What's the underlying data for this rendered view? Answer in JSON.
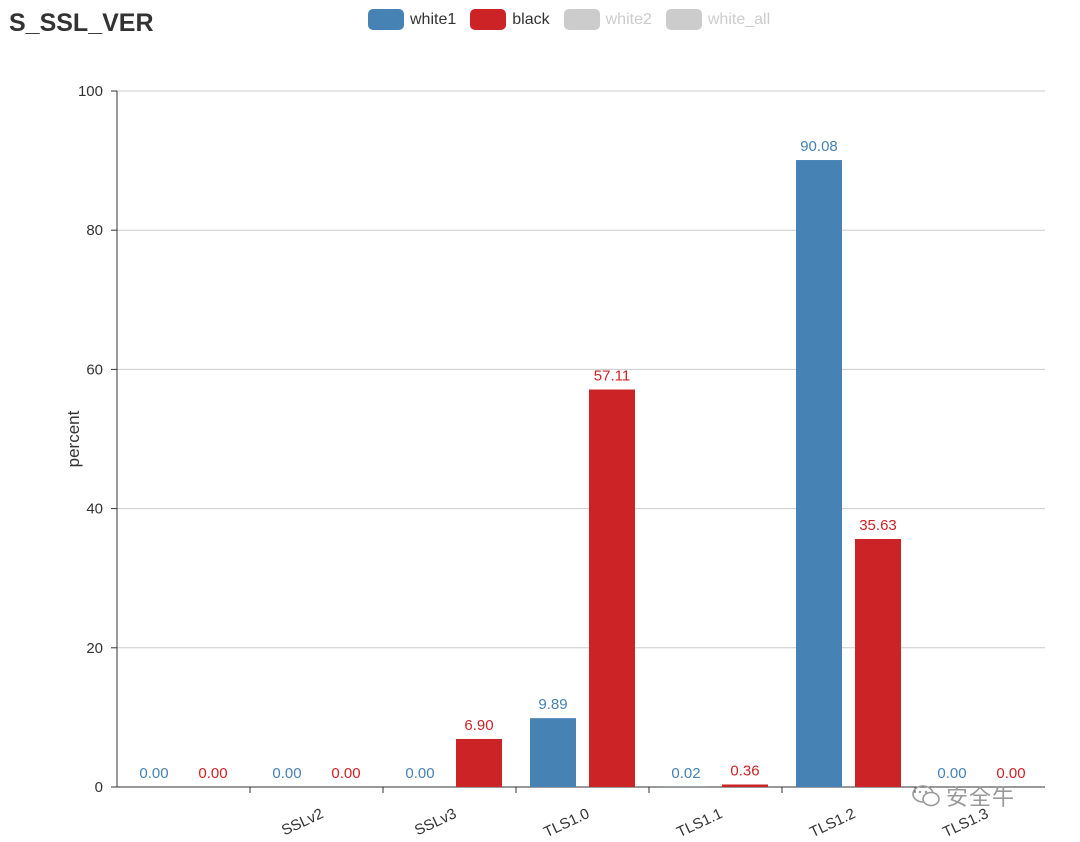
{
  "chart_data": {
    "type": "bar",
    "title": "S_SSL_VER",
    "xlabel": "",
    "ylabel": "percent",
    "ylim": [
      0,
      100
    ],
    "yticks": [
      0,
      20,
      40,
      60,
      80,
      100
    ],
    "grid": true,
    "legend_position": "top-center",
    "categories": [
      "",
      "SSLv2",
      "SSLv3",
      "TLS1.0",
      "TLS1.1",
      "TLS1.2",
      "TLS1.3"
    ],
    "series": [
      {
        "name": "white1",
        "color": "#4682b4",
        "active": true,
        "values": [
          0.0,
          0.0,
          0.0,
          9.89,
          0.02,
          90.08,
          0.0
        ],
        "labels": [
          "0.00",
          "0.00",
          "0.00",
          "9.89",
          "0.02",
          "90.08",
          "0.00"
        ]
      },
      {
        "name": "black",
        "color": "#cc2327",
        "active": true,
        "values": [
          0.0,
          0.0,
          6.9,
          57.11,
          0.36,
          35.63,
          0.0
        ],
        "labels": [
          "0.00",
          "0.00",
          "6.90",
          "57.11",
          "0.36",
          "35.63",
          "0.00"
        ]
      },
      {
        "name": "white2",
        "color": "#cccccc",
        "active": false
      },
      {
        "name": "white_all",
        "color": "#cccccc",
        "active": false
      }
    ]
  },
  "watermark": {
    "text": "安全牛",
    "icon": "wechat-icon"
  }
}
